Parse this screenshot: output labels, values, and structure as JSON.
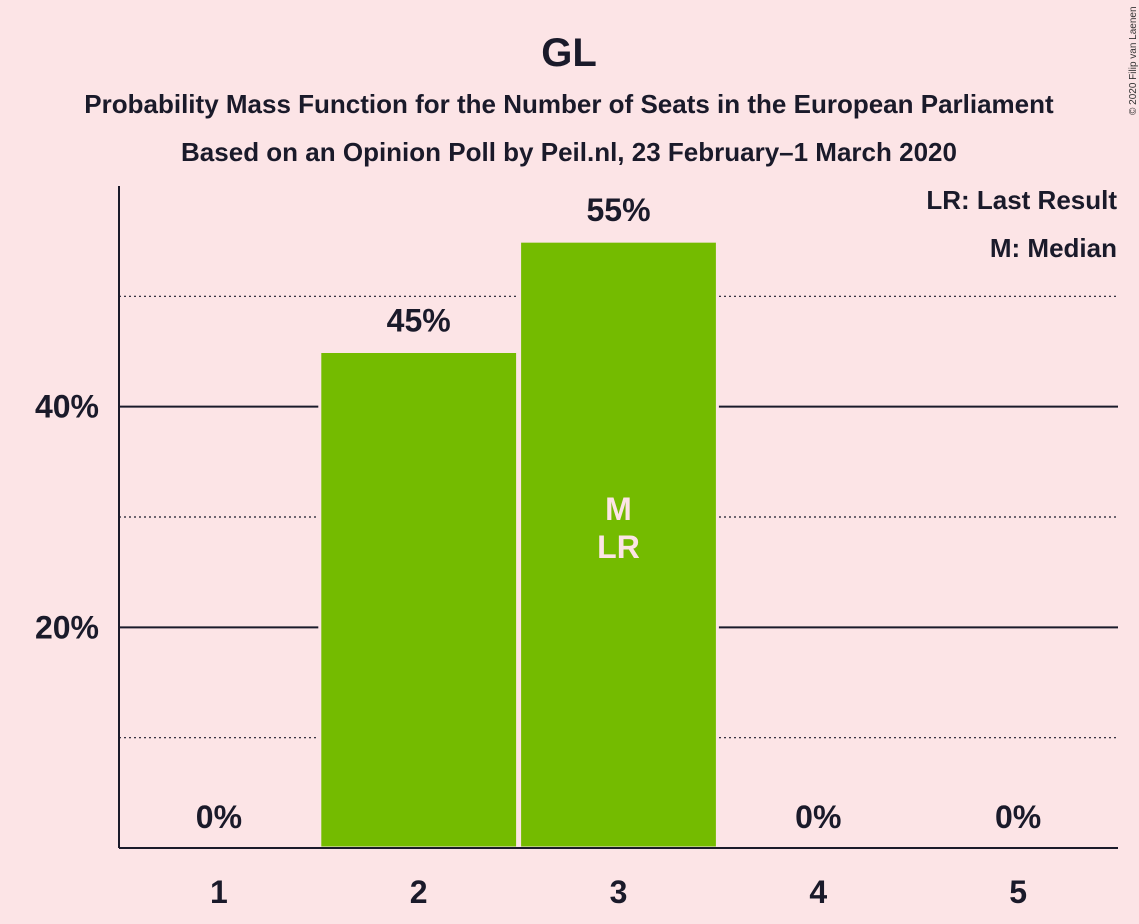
{
  "header": {
    "title": "GL",
    "subtitle1": "Probability Mass Function for the Number of Seats in the European Parliament",
    "subtitle2": "Based on an Opinion Poll by Peil.nl, 23 February–1 March 2020",
    "copyright": "© 2020 Filip van Laenen"
  },
  "legend": {
    "last_result": "LR: Last Result",
    "median": "M: Median"
  },
  "colors": {
    "background": "#fce4e6",
    "bar": "#74bb00",
    "text": "#1a1a2a"
  },
  "chart_data": {
    "type": "bar",
    "categories": [
      "1",
      "2",
      "3",
      "4",
      "5"
    ],
    "values": [
      0,
      45,
      55,
      0,
      0
    ],
    "value_labels": [
      "0%",
      "45%",
      "55%",
      "0%",
      "0%"
    ],
    "ylim": [
      0,
      60
    ],
    "y_major_ticks": [
      20,
      40
    ],
    "y_tick_labels": [
      "20%",
      "40%"
    ],
    "y_minor_gridlines": [
      10,
      30,
      50
    ],
    "grid": true,
    "annotations": [
      {
        "category": "3",
        "lines": [
          "M",
          "LR"
        ]
      }
    ]
  }
}
